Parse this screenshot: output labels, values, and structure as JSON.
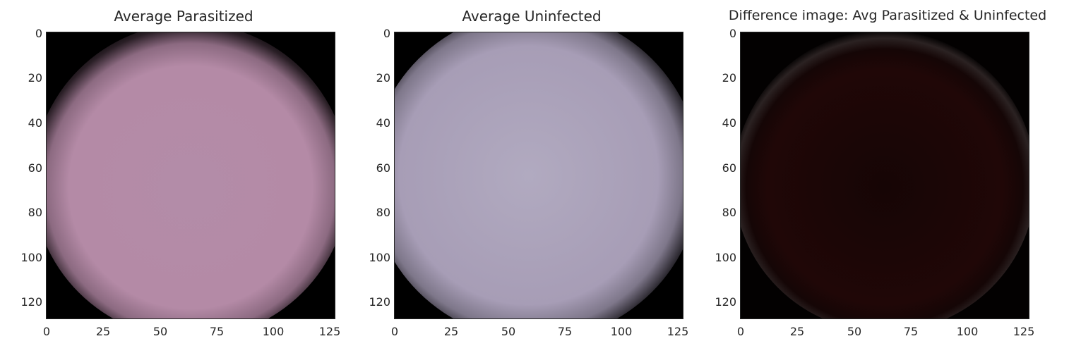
{
  "panels": [
    {
      "title": "Average Parasitized",
      "image": {
        "description_color": "#b48aa6",
        "edge": "#000000"
      }
    },
    {
      "title": "Average Uninfected",
      "image": {
        "description_color": "#a79db6",
        "edge": "#000000"
      }
    },
    {
      "title": "Difference image: Avg Parasitized & Uninfected",
      "image": {
        "description_color": "#1f0606",
        "edge": "#000000"
      }
    }
  ],
  "axes": {
    "yticks": [
      "0",
      "20",
      "40",
      "60",
      "80",
      "100",
      "120"
    ],
    "xticks": [
      "0",
      "25",
      "50",
      "75",
      "100",
      "125"
    ]
  }
}
